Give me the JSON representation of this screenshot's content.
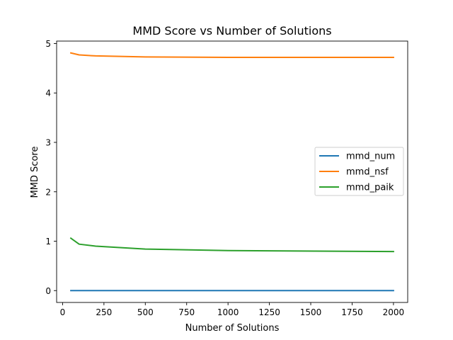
{
  "chart_data": {
    "type": "line",
    "title": "MMD Score vs Number of Solutions",
    "xlabel": "Number of Solutions",
    "ylabel": "MMD Score",
    "xlim": [
      -36,
      2086
    ],
    "ylim": [
      -0.24,
      5.05
    ],
    "xticks": [
      0,
      250,
      500,
      750,
      1000,
      1250,
      1500,
      1750,
      2000
    ],
    "yticks": [
      0,
      1,
      2,
      3,
      4,
      5
    ],
    "grid": false,
    "legend_position": "center-right",
    "series": [
      {
        "name": "mmd_num",
        "color": "#1f77b4",
        "x": [
          50,
          100,
          200,
          500,
          1000,
          2000
        ],
        "y": [
          0.0,
          0.0,
          0.0,
          0.0,
          0.0,
          0.0
        ]
      },
      {
        "name": "mmd_nsf",
        "color": "#ff7f0e",
        "x": [
          50,
          100,
          200,
          500,
          1000,
          2000
        ],
        "y": [
          4.81,
          4.77,
          4.75,
          4.73,
          4.72,
          4.72
        ]
      },
      {
        "name": "mmd_paik",
        "color": "#2ca02c",
        "x": [
          50,
          100,
          200,
          500,
          1000,
          2000
        ],
        "y": [
          1.06,
          0.94,
          0.9,
          0.84,
          0.81,
          0.79
        ]
      }
    ]
  }
}
